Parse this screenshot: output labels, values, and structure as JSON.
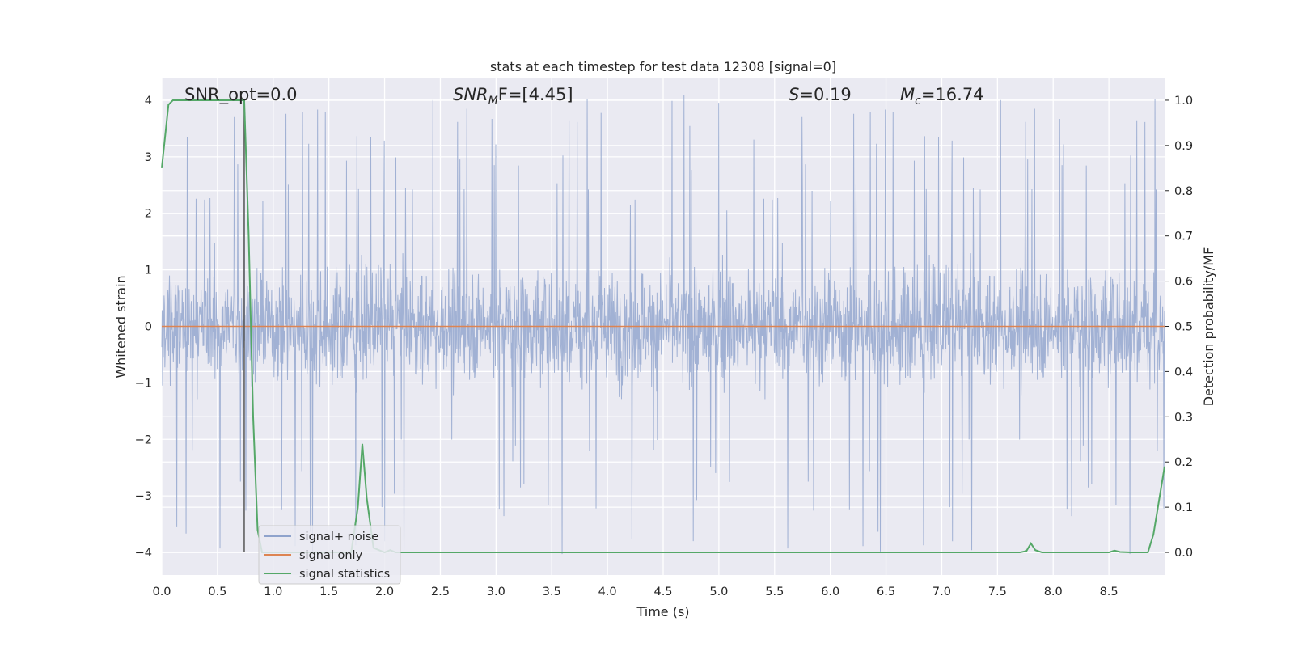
{
  "chart_data": {
    "type": "line",
    "title": "stats at each timestep for test data 12308 [signal=0]",
    "xlabel": "Time (s)",
    "ylabel": "Whitened strain",
    "y2label": "Detection probability/MF",
    "xlim": [
      0.0,
      9.0
    ],
    "ylim": [
      -4.4,
      4.4
    ],
    "y2lim": [
      -0.05,
      1.05
    ],
    "xticks": [
      "0.0",
      "0.5",
      "1.0",
      "1.5",
      "2.0",
      "2.5",
      "3.0",
      "3.5",
      "4.0",
      "4.5",
      "5.0",
      "5.5",
      "6.0",
      "6.5",
      "7.0",
      "7.5",
      "8.0",
      "8.5"
    ],
    "yticks": [
      "4",
      "3",
      "2",
      "1",
      "0",
      "−1",
      "−2",
      "−3",
      "−4"
    ],
    "y2ticks": [
      "1.0",
      "0.9",
      "0.8",
      "0.7",
      "0.6",
      "0.5",
      "0.4",
      "0.3",
      "0.2",
      "0.1",
      "0.0"
    ],
    "grid": true,
    "legend_position": "lower-left",
    "annotations": {
      "snr_opt": "SNR_opt=0.0",
      "snr_mf_prefix": "SNR",
      "snr_mf_sub": "M",
      "snr_mf_suffix": "F=[4.45]",
      "s_label": "S",
      "s_value": "=0.19",
      "mc_label": "M",
      "mc_sub": "c",
      "mc_value": "=16.74"
    },
    "marker_line": {
      "x": 0.74,
      "y_from": -4.0,
      "y_to": 4.0
    },
    "series": [
      {
        "name": "signal+ noise",
        "color": "#8fa3cc",
        "kind": "noise",
        "duration": 9.0,
        "typical_peak_abs": 2.0,
        "max_abs": 4.1
      },
      {
        "name": "signal only",
        "color": "#dd8452",
        "x": [
          0.0,
          9.0
        ],
        "y": [
          0.0,
          0.0
        ]
      },
      {
        "name": "signal statistics",
        "color": "#55a868",
        "axis": "right",
        "x": [
          0.0,
          0.06,
          0.1,
          0.2,
          0.3,
          0.4,
          0.5,
          0.6,
          0.7,
          0.74,
          0.78,
          0.82,
          0.86,
          0.9,
          1.0,
          1.5,
          1.7,
          1.76,
          1.8,
          1.84,
          1.9,
          2.0,
          2.05,
          2.1,
          2.2,
          3.0,
          4.0,
          5.0,
          6.0,
          7.0,
          7.7,
          7.76,
          7.8,
          7.84,
          7.9,
          8.0,
          8.5,
          8.55,
          8.6,
          8.7,
          8.8,
          8.85,
          8.9,
          9.0
        ],
        "y": [
          0.85,
          0.99,
          1.0,
          1.0,
          1.0,
          1.0,
          1.0,
          1.0,
          1.0,
          1.0,
          0.7,
          0.3,
          0.05,
          0.0,
          0.0,
          0.0,
          0.0,
          0.1,
          0.24,
          0.12,
          0.01,
          0.0,
          0.005,
          0.0,
          0.0,
          0.0,
          0.0,
          0.0,
          0.0,
          0.0,
          0.0,
          0.003,
          0.02,
          0.005,
          0.0,
          0.0,
          0.0,
          0.004,
          0.001,
          0.0,
          0.0,
          0.0,
          0.04,
          0.19
        ]
      }
    ]
  }
}
